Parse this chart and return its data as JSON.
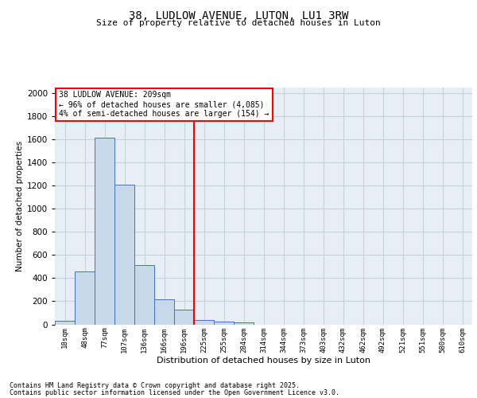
{
  "title1": "38, LUDLOW AVENUE, LUTON, LU1 3RW",
  "title2": "Size of property relative to detached houses in Luton",
  "xlabel": "Distribution of detached houses by size in Luton",
  "ylabel": "Number of detached properties",
  "categories": [
    "18sqm",
    "48sqm",
    "77sqm",
    "107sqm",
    "136sqm",
    "166sqm",
    "196sqm",
    "225sqm",
    "255sqm",
    "284sqm",
    "314sqm",
    "344sqm",
    "373sqm",
    "403sqm",
    "432sqm",
    "462sqm",
    "492sqm",
    "521sqm",
    "551sqm",
    "580sqm",
    "610sqm"
  ],
  "values": [
    30,
    460,
    1615,
    1210,
    510,
    215,
    125,
    40,
    25,
    18,
    0,
    0,
    0,
    0,
    0,
    0,
    0,
    0,
    0,
    0,
    0
  ],
  "bar_color": "#c7d9e8",
  "bar_edge_color": "#4472c4",
  "vline_x": 7,
  "vline_color": "red",
  "annotation_title": "38 LUDLOW AVENUE: 209sqm",
  "annotation_line1": "← 96% of detached houses are smaller (4,085)",
  "annotation_line2": "4% of semi-detached houses are larger (154) →",
  "annotation_box_color": "white",
  "annotation_box_edge": "red",
  "ylim": [
    0,
    2050
  ],
  "yticks": [
    0,
    200,
    400,
    600,
    800,
    1000,
    1200,
    1400,
    1600,
    1800,
    2000
  ],
  "grid_color": "#c8d0dc",
  "bg_color": "#e8eef5",
  "footer1": "Contains HM Land Registry data © Crown copyright and database right 2025.",
  "footer2": "Contains public sector information licensed under the Open Government Licence v3.0."
}
